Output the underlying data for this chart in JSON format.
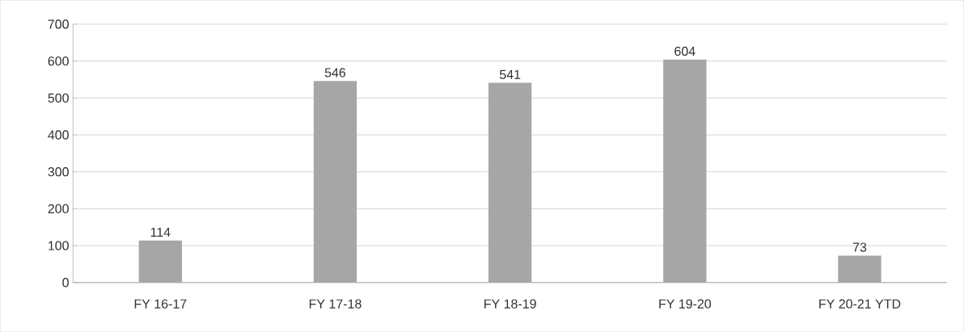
{
  "chart_data": {
    "type": "bar",
    "categories": [
      "FY 16-17",
      "FY 17-18",
      "FY 18-19",
      "FY 19-20",
      "FY 20-21 YTD"
    ],
    "values": [
      114,
      546,
      541,
      604,
      73
    ],
    "color": "#a6a6a6",
    "ylim": [
      0,
      700
    ],
    "yticks": [
      0,
      100,
      200,
      300,
      400,
      500,
      600,
      700
    ],
    "grid": "y",
    "data_labels": true
  }
}
